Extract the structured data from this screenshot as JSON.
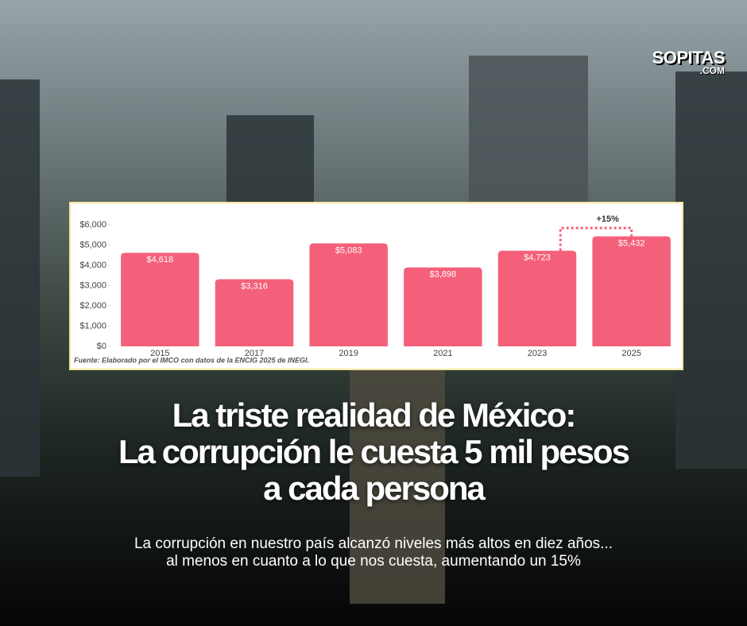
{
  "logo": {
    "name": "SOPITAS",
    "domain": ".COM"
  },
  "chart_data": {
    "type": "bar",
    "categories": [
      "2015",
      "2017",
      "2019",
      "2021",
      "2023",
      "2025"
    ],
    "values": [
      4618,
      3316,
      5083,
      3898,
      4723,
      5432
    ],
    "value_labels": [
      "$4,618",
      "$3,316",
      "$5,083",
      "$3,898",
      "$4,723",
      "$5,432"
    ],
    "color": "#f4607a",
    "ylim": [
      0,
      6000
    ],
    "yticks": [
      {
        "value": 0,
        "label": "$0"
      },
      {
        "value": 1000,
        "label": "$1,000"
      },
      {
        "value": 2000,
        "label": "$2,000"
      },
      {
        "value": 3000,
        "label": "$3,000"
      },
      {
        "value": 4000,
        "label": "$4,000"
      },
      {
        "value": 5000,
        "label": "$5,000"
      },
      {
        "value": 6000,
        "label": "$6,000"
      }
    ],
    "annotation": "+15%",
    "source": "Fuente: Elaborado por el IMCO con datos de la ENCIG 2025 de INEGI."
  },
  "headline": [
    "La triste realidad de México:",
    "La corrupción le cuesta 5 mil pesos",
    "a cada persona"
  ],
  "subtitle": [
    "La corrupción en nuestro país alcanzó niveles más altos en diez años...",
    "al menos en cuanto a lo que nos cuesta, aumentando un 15%"
  ]
}
